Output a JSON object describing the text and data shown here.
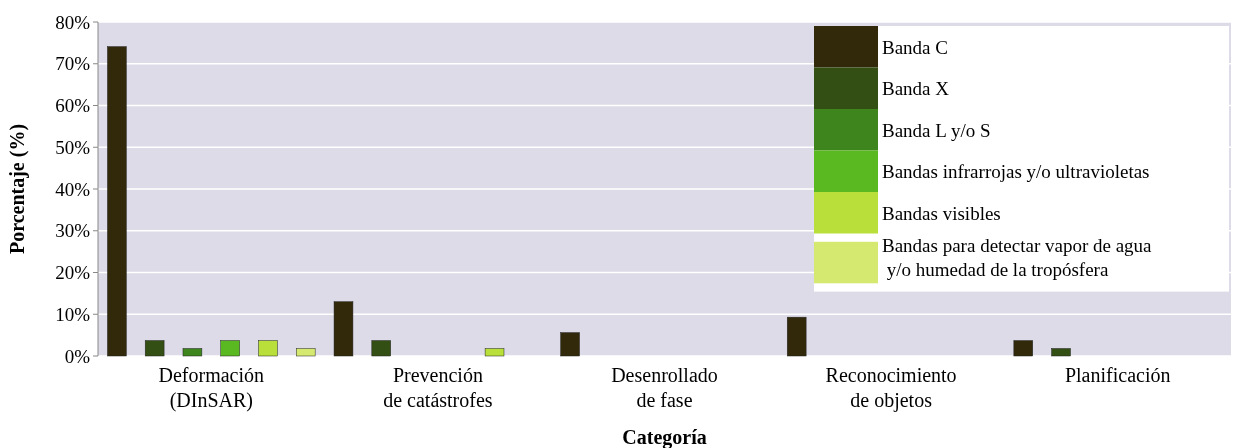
{
  "chart_data": {
    "type": "bar",
    "xlabel": "Categoría",
    "ylabel": "Porcentaje (%)",
    "categories": [
      "Deformación\n(DInSAR)",
      "Prevención\nde catástrofes",
      "Desenrollado\nde fase",
      "Reconocimiento\nde objetos",
      "Planificación"
    ],
    "series": [
      {
        "name": "Banda C",
        "color": "#31290a",
        "values": [
          74.1,
          13,
          5.6,
          9.3,
          3.7
        ]
      },
      {
        "name": "Banda X",
        "color": "#344f14",
        "values": [
          3.7,
          3.7,
          0,
          0,
          1.8
        ]
      },
      {
        "name": "Banda L y/o S",
        "color": "#3f851d",
        "values": [
          1.8,
          0,
          0,
          0,
          0
        ]
      },
      {
        "name": "Bandas infrarrojas y/o ultravioletas",
        "color": "#5ab820",
        "values": [
          3.7,
          0,
          0,
          0,
          0
        ]
      },
      {
        "name": "Bandas visibles",
        "color": "#b9e03a",
        "values": [
          3.7,
          1.8,
          0,
          0,
          0
        ]
      },
      {
        "name": "Bandas para detectar vapor de agua\n y/o humedad de la tropósfera",
        "color": "#d5e970",
        "values": [
          1.8,
          0,
          0,
          0,
          0
        ]
      }
    ],
    "ylim": [
      0,
      80
    ],
    "yticks": [
      {
        "value": 0,
        "label": "0%"
      },
      {
        "value": 10,
        "label": "10%"
      },
      {
        "value": 20,
        "label": "20%"
      },
      {
        "value": 30,
        "label": "30%"
      },
      {
        "value": 40,
        "label": "40%"
      },
      {
        "value": 50,
        "label": "50%"
      },
      {
        "value": 60,
        "label": "60%"
      },
      {
        "value": 70,
        "label": "70%"
      },
      {
        "value": 80,
        "label": "80%"
      }
    ],
    "grid": "y",
    "legend": "top right"
  }
}
